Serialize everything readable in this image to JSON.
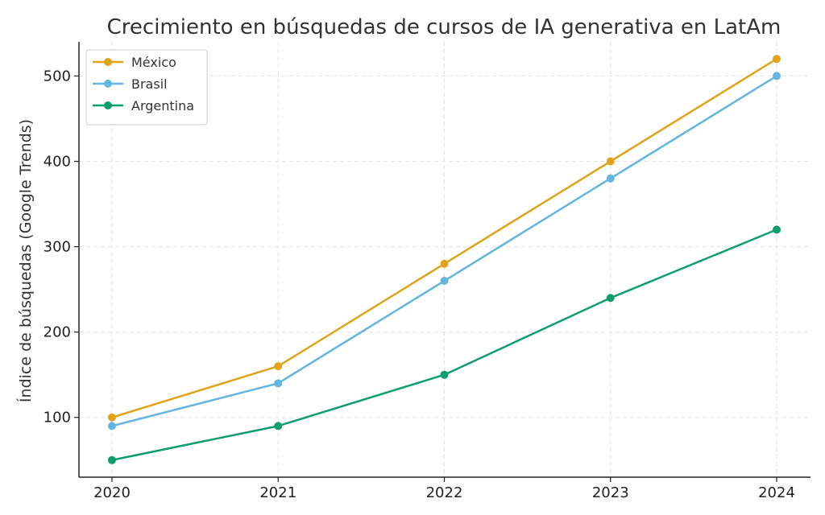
{
  "chart_data": {
    "type": "line",
    "title": "Crecimiento en búsquedas de cursos de IA generativa en LatAm",
    "xlabel": "",
    "ylabel": "Índice de búsquedas (Google Trends)",
    "x": [
      2020,
      2021,
      2022,
      2023,
      2024
    ],
    "x_tick_labels": [
      "2020",
      "2021",
      "2022",
      "2023",
      "2024"
    ],
    "y_ticks": [
      100,
      200,
      300,
      400,
      500
    ],
    "ylim": [
      30,
      540
    ],
    "grid": true,
    "legend_position": "top-left",
    "series": [
      {
        "name": "México",
        "color": "#e0a31a",
        "values": [
          100,
          160,
          280,
          400,
          520
        ]
      },
      {
        "name": "Brasil",
        "color": "#64b5e0",
        "values": [
          90,
          140,
          260,
          380,
          500
        ]
      },
      {
        "name": "Argentina",
        "color": "#0e9e6e",
        "values": [
          50,
          90,
          150,
          240,
          320
        ]
      }
    ]
  }
}
